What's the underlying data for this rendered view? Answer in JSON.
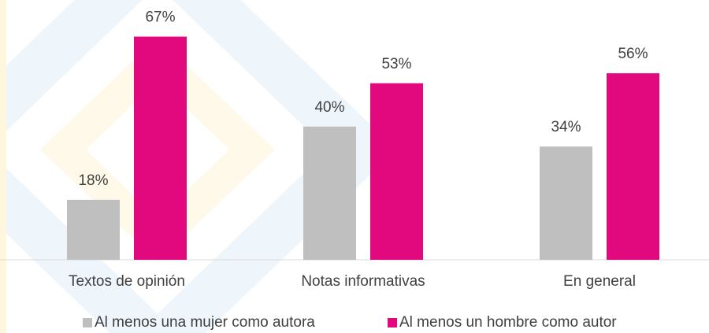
{
  "chart_data": {
    "type": "bar",
    "categories": [
      "Textos de opinión",
      "Notas informativas",
      "En general"
    ],
    "series": [
      {
        "name": "Al menos una mujer como autora",
        "color": "#bfbfbf",
        "values": [
          18,
          40,
          34
        ],
        "value_labels": [
          "18%",
          "40%",
          "34%"
        ]
      },
      {
        "name": "Al menos un hombre como autor",
        "color": "#e2097f",
        "values": [
          67,
          53,
          56
        ],
        "value_labels": [
          "67%",
          "53%",
          "56%"
        ]
      }
    ],
    "ylim": [
      0,
      78
    ],
    "legend": "bottom"
  }
}
